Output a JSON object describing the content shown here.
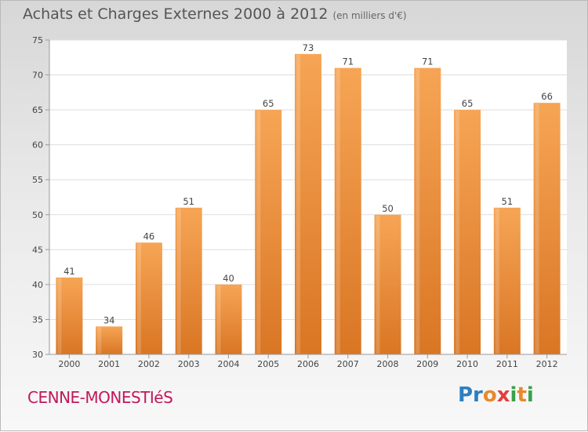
{
  "title": "Achats et Charges Externes 2000 à 2012",
  "unit": "(en milliers d'€)",
  "commune": "CENNE-MONESTIéS",
  "brand": "Proxiti",
  "colors": {
    "bar_top": "#f6a555",
    "bar_bottom": "#d97624",
    "commune": "#c2185b"
  },
  "chart_data": {
    "type": "bar",
    "categories": [
      "2000",
      "2001",
      "2002",
      "2003",
      "2004",
      "2005",
      "2006",
      "2007",
      "2008",
      "2009",
      "2010",
      "2011",
      "2012"
    ],
    "values": [
      41,
      34,
      46,
      51,
      40,
      65,
      73,
      71,
      50,
      71,
      65,
      51,
      66
    ],
    "ylim": [
      30,
      75
    ],
    "yticks": [
      30,
      35,
      40,
      45,
      50,
      55,
      60,
      65,
      70,
      75
    ],
    "grid": true
  }
}
